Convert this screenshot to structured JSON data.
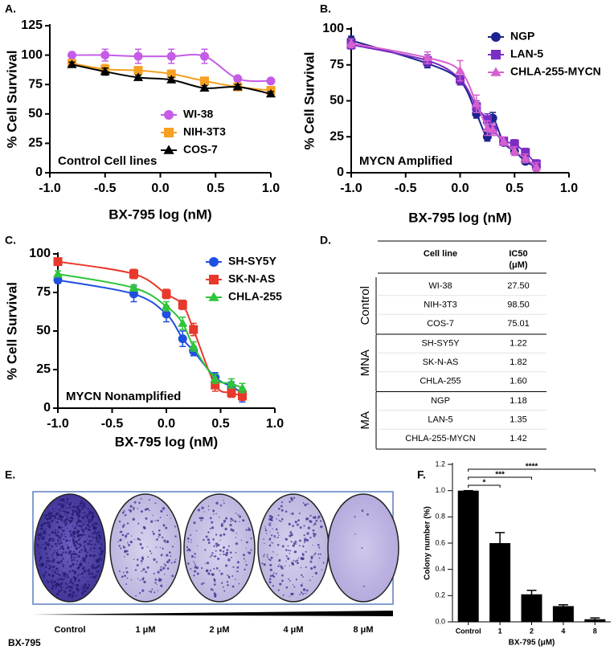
{
  "chart_data": [
    {
      "type": "line",
      "panel": "A.",
      "annotation": "Control Cell lines",
      "xlabel": "BX-795 log (nM)",
      "ylabel": "% Cell Survival",
      "x": [
        -0.8,
        -0.5,
        -0.2,
        0.1,
        0.4,
        0.7,
        1.0
      ],
      "xlim": [
        -1,
        1
      ],
      "xticks": [
        {
          "value": -1,
          "label": "-1.0"
        },
        {
          "value": -0.5,
          "label": "-0.5"
        },
        {
          "value": 0,
          "label": "0.0"
        },
        {
          "value": 0.5,
          "label": "0.5"
        },
        {
          "value": 1,
          "label": "1.0"
        }
      ],
      "ylim": [
        0,
        125
      ],
      "yticks": [
        0,
        25,
        50,
        75,
        100,
        125
      ],
      "legend": "lower right",
      "series": [
        {
          "name": "WI-38",
          "color": "#c45ce8",
          "marker": "circle",
          "values": [
            100,
            100,
            99,
            99,
            99,
            80,
            78
          ],
          "errors": [
            2,
            5,
            6,
            6,
            6,
            2,
            2
          ]
        },
        {
          "name": "NIH-3T3",
          "color": "#f5a020",
          "marker": "square",
          "values": [
            93,
            88,
            87,
            84,
            78,
            73,
            70
          ],
          "errors": [
            3,
            4,
            3,
            3,
            3,
            2,
            2
          ]
        },
        {
          "name": "COS-7",
          "color": "#000000",
          "marker": "triangle",
          "values": [
            92,
            86,
            81,
            79,
            72,
            73,
            67
          ],
          "errors": [
            2,
            3,
            2,
            2,
            2,
            2,
            2
          ]
        }
      ]
    },
    {
      "type": "line",
      "panel": "B.",
      "annotation": "MYCN Amplified",
      "xlabel": "BX-795 log (nM)",
      "ylabel": "% Cell Survival",
      "x": [
        -1.0,
        -0.3,
        0.0,
        0.15,
        0.25,
        0.3,
        0.4,
        0.5,
        0.6,
        0.7
      ],
      "xlim": [
        -1,
        1
      ],
      "xticks": [
        {
          "value": -1,
          "label": "-1.0"
        },
        {
          "value": -0.5,
          "label": "-0.5"
        },
        {
          "value": 0,
          "label": "0.0"
        },
        {
          "value": 0.5,
          "label": "0.5"
        },
        {
          "value": 1,
          "label": "1.0"
        }
      ],
      "ylim": [
        0,
        100
      ],
      "yticks": [
        0,
        25,
        50,
        75,
        100
      ],
      "legend": "upper right",
      "series": [
        {
          "name": "NGP",
          "color": "#1c2390",
          "marker": "circle",
          "values": [
            92,
            76,
            64,
            41,
            25,
            38,
            21,
            15,
            8,
            4
          ],
          "errors": [
            3,
            3,
            3,
            3,
            3,
            4,
            2,
            2,
            2,
            2
          ]
        },
        {
          "name": "LAN-5",
          "color": "#7a2ec4",
          "marker": "square",
          "values": [
            89,
            78,
            65,
            46,
            37,
            30,
            22,
            20,
            14,
            6
          ],
          "errors": [
            3,
            4,
            4,
            4,
            4,
            4,
            3,
            3,
            3,
            3
          ]
        },
        {
          "name": "CHLA-255-MYCN",
          "color": "#d660d0",
          "marker": "triangle",
          "values": [
            90,
            80,
            71,
            48,
            31,
            30,
            22,
            15,
            10,
            4
          ],
          "errors": [
            3,
            4,
            7,
            6,
            5,
            4,
            3,
            3,
            3,
            3
          ]
        }
      ]
    },
    {
      "type": "line",
      "panel": "C.",
      "annotation": "MYCN Nonamplified",
      "xlabel": "BX-795 log (nM)",
      "ylabel": "% Cell Survival",
      "x": [
        -1.0,
        -0.3,
        0.0,
        0.15,
        0.25,
        0.45,
        0.6,
        0.7
      ],
      "xlim": [
        -1,
        1
      ],
      "xticks": [
        {
          "value": -1,
          "label": "-1.0"
        },
        {
          "value": -0.5,
          "label": "-0.5"
        },
        {
          "value": 0,
          "label": "0.0"
        },
        {
          "value": 0.5,
          "label": "0.5"
        },
        {
          "value": 1,
          "label": "1.0"
        }
      ],
      "ylim": [
        0,
        100
      ],
      "yticks": [
        0,
        25,
        50,
        75,
        100
      ],
      "legend": "upper right",
      "series": [
        {
          "name": "SH-SY5Y",
          "color": "#1f4fe0",
          "marker": "circle",
          "values": [
            83,
            74,
            61,
            45,
            37,
            20,
            14,
            10
          ],
          "errors": [
            2,
            5,
            5,
            5,
            3,
            3,
            3,
            6
          ]
        },
        {
          "name": "SK-N-AS",
          "color": "#e8382b",
          "marker": "square",
          "values": [
            95,
            87,
            74,
            67,
            51,
            15,
            10,
            8
          ],
          "errors": [
            2,
            3,
            3,
            3,
            4,
            4,
            3,
            3
          ]
        },
        {
          "name": "CHLA-255",
          "color": "#2fc43a",
          "marker": "triangle",
          "values": [
            87,
            78,
            66,
            55,
            40,
            19,
            16,
            13
          ],
          "errors": [
            2,
            2,
            3,
            4,
            3,
            3,
            3,
            3
          ]
        }
      ]
    },
    {
      "type": "bar",
      "panel": "F.",
      "xlabel": "BX-795 (μM)",
      "ylabel": "Colony number (%)",
      "categories": [
        "Control",
        "1",
        "2",
        "4",
        "8"
      ],
      "values": [
        1.0,
        0.6,
        0.21,
        0.12,
        0.02
      ],
      "errors": [
        0,
        0.08,
        0.03,
        0.01,
        0.01
      ],
      "color": "#000000",
      "ylim": [
        0,
        1.2
      ],
      "yticks": [
        {
          "value": 0,
          "label": "0.0"
        },
        {
          "value": 0.2,
          "label": "0.2"
        },
        {
          "value": 0.4,
          "label": "0.4"
        },
        {
          "value": 0.6,
          "label": "0.6"
        },
        {
          "value": 0.8,
          "label": "0.8"
        },
        {
          "value": 1.0,
          "label": "1.0"
        },
        {
          "value": 1.2,
          "label": "1.2"
        }
      ],
      "comparisons": [
        {
          "label": "*",
          "vs": "1"
        },
        {
          "label": "***",
          "vs": "2"
        },
        {
          "label": "****",
          "vs": "8"
        }
      ]
    }
  ],
  "table": {
    "label": "D.",
    "header": {
      "cell_line": "Cell line",
      "ic50": "IC50",
      "unit": "(μM)"
    },
    "groups": [
      {
        "name": "Control",
        "rows": [
          [
            "WI-38",
            "27.50"
          ],
          [
            "NIH-3T3",
            "98.50"
          ],
          [
            "COS-7",
            "75.01"
          ]
        ]
      },
      {
        "name": "MNA",
        "rows": [
          [
            "SH-SY5Y",
            "1.22"
          ],
          [
            "SK-N-AS",
            "1.82"
          ],
          [
            "CHLA-255",
            "1.60"
          ]
        ]
      },
      {
        "name": "MA",
        "rows": [
          [
            "NGP",
            "1.18"
          ],
          [
            "LAN-5",
            "1.35"
          ],
          [
            "CHLA-255-MYCN",
            "1.42"
          ]
        ]
      }
    ]
  },
  "colony_panel": {
    "label": "E.",
    "wells": [
      "Control",
      "1 μM",
      "2 μM",
      "4 μM",
      "8 μM"
    ],
    "drug": "BX-795"
  }
}
